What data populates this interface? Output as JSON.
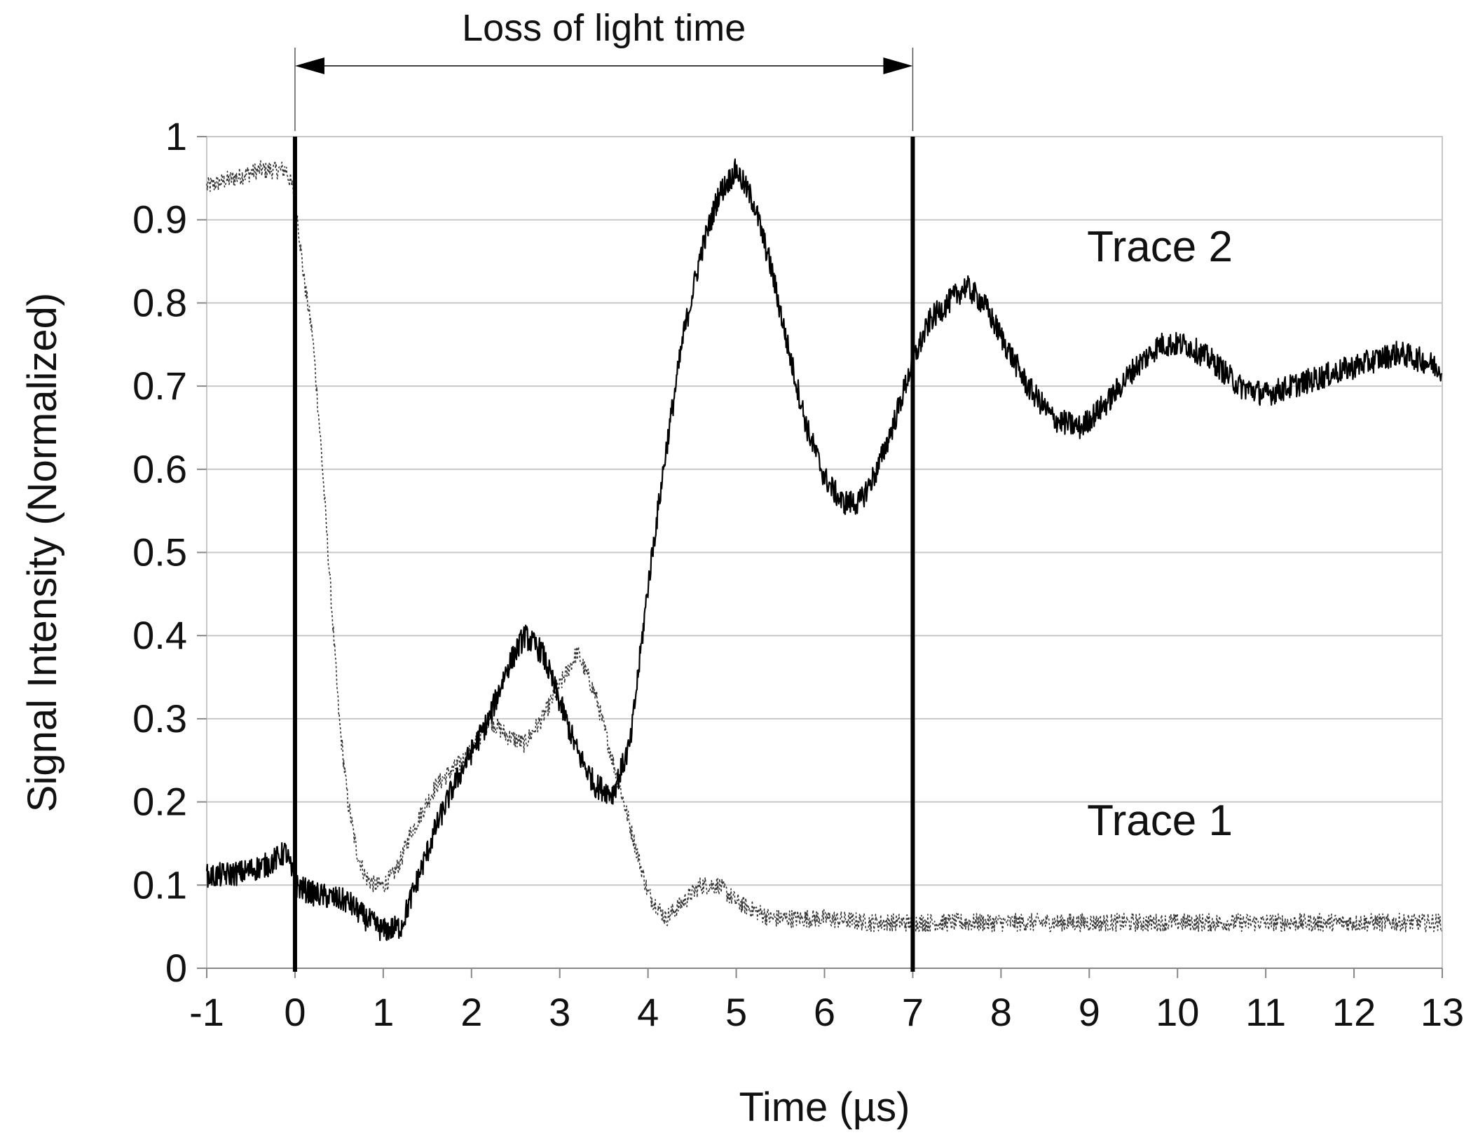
{
  "chart_data": {
    "type": "line",
    "title": "",
    "xlabel": "Time (µs)",
    "ylabel": "Signal Intensity (Normalized)",
    "xlim": [
      -1,
      13
    ],
    "ylim": [
      0,
      1
    ],
    "xticks": [
      -1,
      0,
      1,
      2,
      3,
      4,
      5,
      6,
      7,
      8,
      9,
      10,
      11,
      12,
      13
    ],
    "yticks": [
      0,
      0.1,
      0.2,
      0.3,
      0.4,
      0.5,
      0.6,
      0.7,
      0.8,
      0.9,
      1
    ],
    "xtick_labels": [
      "-1",
      "0",
      "1",
      "2",
      "3",
      "4",
      "5",
      "6",
      "7",
      "8",
      "9",
      "10",
      "11",
      "12",
      "13"
    ],
    "ytick_labels": [
      "0",
      "0.1",
      "0.2",
      "0.3",
      "0.4",
      "0.5",
      "0.6",
      "0.7",
      "0.8",
      "0.9",
      "1"
    ],
    "grid": "horizontal",
    "markers": [
      0,
      7
    ],
    "annotation": {
      "text": "Loss of light time",
      "from": 0,
      "to": 7
    },
    "series": [
      {
        "name": "Trace 1",
        "style": "dotted",
        "x": [
          -1,
          -0.7,
          -0.4,
          -0.1,
          0,
          0.05,
          0.1,
          0.2,
          0.3,
          0.4,
          0.5,
          0.6,
          0.7,
          0.8,
          0.9,
          1.0,
          1.1,
          1.2,
          1.3,
          1.4,
          1.5,
          1.6,
          1.8,
          2.0,
          2.2,
          2.4,
          2.6,
          2.8,
          3.0,
          3.2,
          3.4,
          3.6,
          3.8,
          4.0,
          4.2,
          4.4,
          4.6,
          4.8,
          5.0,
          5.4,
          6.0,
          6.5,
          7.0,
          8.0,
          9.0,
          10.0,
          11.0,
          12.0,
          13.0
        ],
        "y": [
          0.94,
          0.95,
          0.96,
          0.96,
          0.93,
          0.88,
          0.83,
          0.76,
          0.62,
          0.46,
          0.3,
          0.2,
          0.14,
          0.11,
          0.1,
          0.1,
          0.11,
          0.13,
          0.16,
          0.18,
          0.2,
          0.22,
          0.24,
          0.26,
          0.3,
          0.28,
          0.27,
          0.3,
          0.34,
          0.38,
          0.33,
          0.25,
          0.17,
          0.09,
          0.06,
          0.08,
          0.1,
          0.1,
          0.08,
          0.06,
          0.06,
          0.055,
          0.055,
          0.055,
          0.055,
          0.055,
          0.055,
          0.055,
          0.055
        ]
      },
      {
        "name": "Trace 2",
        "style": "solid",
        "x": [
          -1,
          -0.6,
          -0.3,
          -0.1,
          0,
          0.2,
          0.4,
          0.6,
          0.8,
          1.0,
          1.2,
          1.4,
          1.6,
          1.8,
          2.0,
          2.2,
          2.4,
          2.6,
          2.8,
          3.0,
          3.2,
          3.4,
          3.6,
          3.8,
          4.0,
          4.2,
          4.4,
          4.6,
          4.8,
          5.0,
          5.2,
          5.4,
          5.6,
          5.8,
          6.0,
          6.2,
          6.4,
          6.6,
          6.8,
          7.0,
          7.2,
          7.4,
          7.6,
          7.8,
          8.0,
          8.3,
          8.6,
          8.9,
          9.2,
          9.5,
          9.8,
          10.1,
          10.4,
          10.7,
          11.0,
          11.3,
          11.6,
          11.9,
          12.2,
          12.5,
          12.8,
          13.0
        ],
        "y": [
          0.11,
          0.115,
          0.125,
          0.14,
          0.1,
          0.09,
          0.085,
          0.08,
          0.06,
          0.045,
          0.05,
          0.11,
          0.17,
          0.22,
          0.26,
          0.3,
          0.36,
          0.4,
          0.38,
          0.32,
          0.26,
          0.22,
          0.21,
          0.27,
          0.46,
          0.62,
          0.76,
          0.86,
          0.93,
          0.96,
          0.92,
          0.84,
          0.74,
          0.65,
          0.59,
          0.56,
          0.56,
          0.6,
          0.66,
          0.73,
          0.78,
          0.8,
          0.82,
          0.8,
          0.76,
          0.7,
          0.66,
          0.65,
          0.68,
          0.72,
          0.75,
          0.75,
          0.73,
          0.7,
          0.69,
          0.7,
          0.71,
          0.72,
          0.73,
          0.74,
          0.73,
          0.72
        ]
      }
    ]
  }
}
